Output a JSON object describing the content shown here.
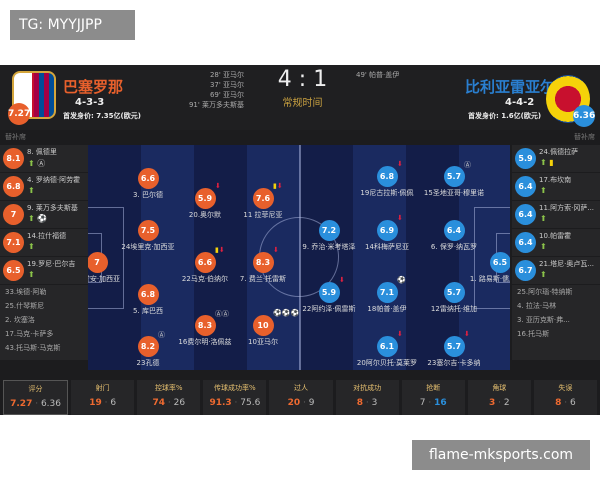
{
  "tg_label": "TG: MYYJJPP",
  "watermark": "flame-mksports.com",
  "colors": {
    "home": "#e8602c",
    "away": "#2a8fdc",
    "home_name": "#e8602c",
    "away_name": "#2a7fd0"
  },
  "home": {
    "name": "巴塞罗那",
    "formation": "4-3-3",
    "value": "首发身价: 7.35亿(欧元)",
    "rating": "7.27",
    "goals": [
      "28' 亚马尔",
      "37' 亚马尔",
      "69' 亚马尔",
      "91' 莱万多夫斯基"
    ],
    "bench_label": "替补席",
    "subs_used": [
      {
        "rating": "8.1",
        "name": "8. 佩德里",
        "events": [
          "sub-in-icon",
          "assist-icon"
        ]
      },
      {
        "rating": "6.8",
        "name": "4. 罗纳德·阿劳霍",
        "events": [
          "sub-in-icon"
        ]
      },
      {
        "rating": "7",
        "name": "9. 莱万多夫斯基",
        "events": [
          "sub-in-icon",
          "goal-icon"
        ]
      },
      {
        "rating": "7.1",
        "name": "14.拉什福德",
        "events": [
          "sub-in-icon"
        ]
      },
      {
        "rating": "6.5",
        "name": "19.罗尼·巴尔吉",
        "events": [
          "sub-in-icon"
        ]
      }
    ],
    "subs_unused": [
      "33.埃德·阿勒",
      "25.什琴斯尼",
      "2. 坎塞洛",
      "17.马克·卡萨多",
      "43.托马斯·马克斯"
    ],
    "players": [
      {
        "name": "3. 巴尔德",
        "rating": "6.6",
        "events": []
      },
      {
        "name": "20.奥尔默",
        "rating": "5.9",
        "events": [
          "sub-out"
        ]
      },
      {
        "name": "11 拉菲尼亚",
        "rating": "7.6",
        "events": [
          "yellow-card",
          "sub-out"
        ]
      },
      {
        "name": "24埃里克·加西亚",
        "rating": "7.5",
        "events": []
      },
      {
        "name": "13霍安·加西亚",
        "rating": "7",
        "events": []
      },
      {
        "name": "22马克·伯纳尔",
        "rating": "6.6",
        "events": [
          "yellow-card",
          "sub-out"
        ]
      },
      {
        "name": "7. 费兰·托雷斯",
        "rating": "8.3",
        "events": [
          "sub-out"
        ]
      },
      {
        "name": "5. 库巴西",
        "rating": "6.8",
        "events": []
      },
      {
        "name": "16费尔明·洛佩兹",
        "rating": "8.3",
        "events": [
          "assist",
          "assist"
        ]
      },
      {
        "name": "10亚马尔",
        "rating": "10",
        "events": [
          "goal",
          "goal",
          "goal"
        ]
      },
      {
        "name": "23孔德",
        "rating": "8.2",
        "events": [
          "assist"
        ]
      }
    ]
  },
  "away": {
    "name": "比利亚雷亚尔",
    "formation": "4-4-2",
    "value": "首发身价: 1.6亿(欧元)",
    "rating": "6.36",
    "goals": [
      "49' 帕普·盖伊"
    ],
    "bench_label": "替补席",
    "subs_used": [
      {
        "rating": "5.9",
        "name": "24.佩德拉萨",
        "events": [
          "sub-in-icon",
          "yellow-card-icon"
        ]
      },
      {
        "rating": "6.4",
        "name": "17.布坎南",
        "events": [
          "sub-in-icon"
        ]
      },
      {
        "rating": "6.4",
        "name": "11.阿方索·冈萨...",
        "events": [
          "sub-in-icon"
        ]
      },
      {
        "rating": "6.4",
        "name": "10.帕雷霍",
        "events": [
          "sub-in-icon"
        ]
      },
      {
        "rating": "6.7",
        "name": "21.塔尼·奥卢瓦...",
        "events": [
          "sub-in-icon"
        ]
      }
    ],
    "subs_unused": [
      "25.阿尔瑙·特纳斯",
      "4. 拉法·马林",
      "3. 亚历克斯·弗...",
      "16.托马斯"
    ],
    "players": [
      {
        "name": "19尼古拉斯·佩佩",
        "rating": "6.8",
        "events": [
          "sub-out"
        ]
      },
      {
        "name": "15圣地亚哥·穆里诺",
        "rating": "5.7",
        "events": [
          "assist"
        ]
      },
      {
        "name": "9. 乔治·米考塔泽",
        "rating": "7.2",
        "events": []
      },
      {
        "name": "14科梅萨尼亚",
        "rating": "6.9",
        "events": [
          "sub-out"
        ]
      },
      {
        "name": "6. 保罗·纳瓦罗",
        "rating": "6.4",
        "events": []
      },
      {
        "name": "1. 路易斯·儒尼奥尔",
        "rating": "6.5",
        "events": []
      },
      {
        "name": "22阿约泽·佩雷斯",
        "rating": "5.9",
        "events": [
          "sub-out"
        ]
      },
      {
        "name": "18帕普·盖伊",
        "rating": "7.1",
        "events": [
          "goal"
        ]
      },
      {
        "name": "12雷纳托·维加",
        "rating": "5.7",
        "events": []
      },
      {
        "name": "20阿尔贝托·莫莱罗",
        "rating": "6.1",
        "events": [
          "sub-out"
        ]
      },
      {
        "name": "23塞尔吉·卡多纳",
        "rating": "5.7",
        "events": [
          "sub-out"
        ]
      }
    ]
  },
  "match": {
    "score": "4 : 1",
    "period": "常规时间"
  },
  "stats": [
    {
      "label": "评分",
      "home": "7.27",
      "away": "6.36",
      "leader": "home"
    },
    {
      "label": "射门",
      "home": "19",
      "away": "6",
      "leader": "home"
    },
    {
      "label": "控球率%",
      "home": "74",
      "away": "26",
      "leader": "home"
    },
    {
      "label": "传球成功率%",
      "home": "91.3",
      "away": "75.6",
      "leader": "home"
    },
    {
      "label": "过人",
      "home": "20",
      "away": "9",
      "leader": "home"
    },
    {
      "label": "对抗成功",
      "home": "8",
      "away": "3",
      "leader": "home"
    },
    {
      "label": "抢断",
      "home": "7",
      "away": "16",
      "leader": "away"
    },
    {
      "label": "角球",
      "home": "3",
      "away": "2",
      "leader": "home"
    },
    {
      "label": "失误",
      "home": "8",
      "away": "6",
      "leader": "home"
    }
  ]
}
